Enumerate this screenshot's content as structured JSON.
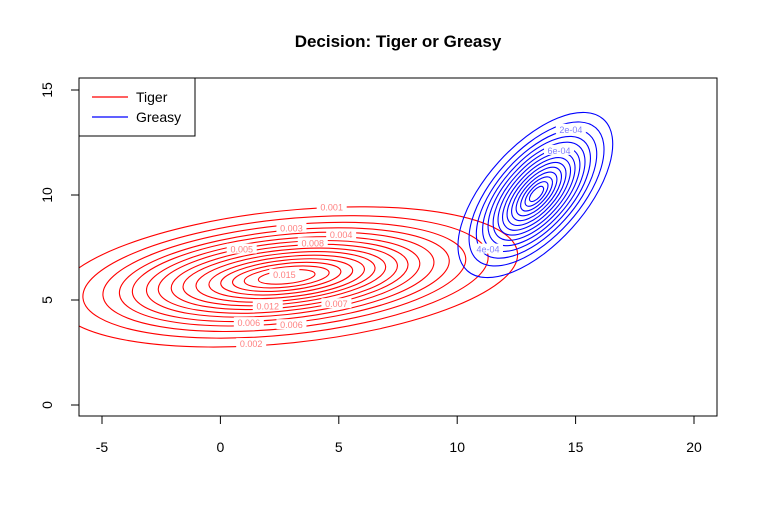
{
  "chart_data": {
    "type": "contour",
    "title": "Decision: Tiger or Greasy",
    "xlabel": "",
    "ylabel": "",
    "xlim": [
      -5,
      20
    ],
    "ylim": [
      0,
      15
    ],
    "x_ticks": [
      -5,
      0,
      5,
      10,
      15,
      20
    ],
    "y_ticks": [
      0,
      5,
      10,
      15
    ],
    "x_tick_labels": [
      "-5",
      "0",
      "5",
      "10",
      "15",
      "20"
    ],
    "y_tick_labels": [
      "0",
      "5",
      "10",
      "15"
    ],
    "grid": false,
    "legend": {
      "placement": "top-left",
      "entries": [
        {
          "label": "Tiger",
          "color": "#ff0000"
        },
        {
          "label": "Greasy",
          "color": "#0000ff"
        }
      ]
    },
    "series": [
      {
        "name": "Tiger",
        "color": "#ff0000",
        "label_color": "#ff8080",
        "center": [
          2.8,
          6.1
        ],
        "levels": [
          {
            "rx": 9.8,
            "ry": 3.15,
            "angle": 6,
            "dx": 0,
            "dy": 0
          },
          {
            "rx": 8.6,
            "ry": 2.75,
            "angle": 6,
            "dx": -0.05,
            "dy": 0
          },
          {
            "rx": 7.7,
            "ry": 2.45,
            "angle": 6,
            "dx": -0.1,
            "dy": 0
          },
          {
            "rx": 7.0,
            "ry": 2.2,
            "angle": 6,
            "dx": -0.1,
            "dy": 0
          },
          {
            "rx": 6.4,
            "ry": 2.0,
            "angle": 6,
            "dx": -0.15,
            "dy": 0
          },
          {
            "rx": 5.8,
            "ry": 1.8,
            "angle": 6,
            "dx": -0.15,
            "dy": 0
          },
          {
            "rx": 5.3,
            "ry": 1.62,
            "angle": 6,
            "dx": -0.15,
            "dy": 0
          },
          {
            "rx": 4.8,
            "ry": 1.45,
            "angle": 6,
            "dx": -0.1,
            "dy": 0
          },
          {
            "rx": 4.3,
            "ry": 1.28,
            "angle": 6,
            "dx": -0.1,
            "dy": 0
          },
          {
            "rx": 3.8,
            "ry": 1.12,
            "angle": 6,
            "dx": -0.05,
            "dy": 0
          },
          {
            "rx": 3.3,
            "ry": 0.96,
            "angle": 6,
            "dx": 0,
            "dy": 0
          },
          {
            "rx": 2.8,
            "ry": 0.8,
            "angle": 6,
            "dx": 0,
            "dy": 0
          },
          {
            "rx": 2.3,
            "ry": 0.64,
            "angle": 6,
            "dx": 0,
            "dy": 0
          },
          {
            "rx": 1.8,
            "ry": 0.48,
            "angle": 6,
            "dx": 0,
            "dy": 0
          },
          {
            "rx": 1.2,
            "ry": 0.32,
            "angle": 6,
            "dx": 0,
            "dy": 0
          }
        ],
        "contour_labels": [
          {
            "text": "0.001",
            "x": 4.7,
            "y": 9.4
          },
          {
            "text": "0.003",
            "x": 3.0,
            "y": 8.4
          },
          {
            "text": "0.004",
            "x": 5.1,
            "y": 8.1
          },
          {
            "text": "0.002",
            "x": 1.3,
            "y": 2.9
          },
          {
            "text": "0.006",
            "x": 3.0,
            "y": 3.8
          },
          {
            "text": "0.006",
            "x": 1.2,
            "y": 3.9
          },
          {
            "text": "0.005",
            "x": 0.9,
            "y": 7.4
          },
          {
            "text": "0.008",
            "x": 3.9,
            "y": 7.7
          },
          {
            "text": "0.015",
            "x": 2.7,
            "y": 6.2
          },
          {
            "text": "0.007",
            "x": 4.9,
            "y": 4.8
          },
          {
            "text": "0.012",
            "x": 2.0,
            "y": 4.7
          }
        ]
      },
      {
        "name": "Greasy",
        "color": "#0000ff",
        "label_color": "#8080ff",
        "center": [
          13.3,
          10.0
        ],
        "levels": [
          {
            "rx": 4.3,
            "ry": 2.35,
            "angle": 48,
            "dx": 0,
            "dy": 0
          },
          {
            "rx": 3.75,
            "ry": 2.05,
            "angle": 48,
            "dx": 0.05,
            "dy": 0.05
          },
          {
            "rx": 3.35,
            "ry": 1.82,
            "angle": 48,
            "dx": 0.05,
            "dy": 0.05
          },
          {
            "rx": 3.0,
            "ry": 1.63,
            "angle": 48,
            "dx": 0.05,
            "dy": 0.05
          },
          {
            "rx": 2.7,
            "ry": 1.46,
            "angle": 48,
            "dx": 0.05,
            "dy": 0.05
          },
          {
            "rx": 2.42,
            "ry": 1.3,
            "angle": 48,
            "dx": 0.05,
            "dy": 0.05
          },
          {
            "rx": 2.15,
            "ry": 1.15,
            "angle": 48,
            "dx": 0.05,
            "dy": 0.05
          },
          {
            "rx": 1.9,
            "ry": 1.0,
            "angle": 48,
            "dx": 0.05,
            "dy": 0.05
          },
          {
            "rx": 1.65,
            "ry": 0.86,
            "angle": 48,
            "dx": 0.05,
            "dy": 0.05
          },
          {
            "rx": 1.4,
            "ry": 0.72,
            "angle": 48,
            "dx": 0.05,
            "dy": 0.05
          },
          {
            "rx": 1.15,
            "ry": 0.58,
            "angle": 48,
            "dx": 0.05,
            "dy": 0.05
          },
          {
            "rx": 0.9,
            "ry": 0.45,
            "angle": 48,
            "dx": 0.05,
            "dy": 0.05
          },
          {
            "rx": 0.65,
            "ry": 0.32,
            "angle": 48,
            "dx": 0.05,
            "dy": 0.05
          },
          {
            "rx": 0.4,
            "ry": 0.2,
            "angle": 48,
            "dx": 0.05,
            "dy": 0.05
          }
        ],
        "contour_labels": [
          {
            "text": "2e-04",
            "x": 14.8,
            "y": 13.1
          },
          {
            "text": "4e-04",
            "x": 11.3,
            "y": 7.4
          },
          {
            "text": "6e-04",
            "x": 14.3,
            "y": 12.1
          }
        ]
      }
    ]
  }
}
